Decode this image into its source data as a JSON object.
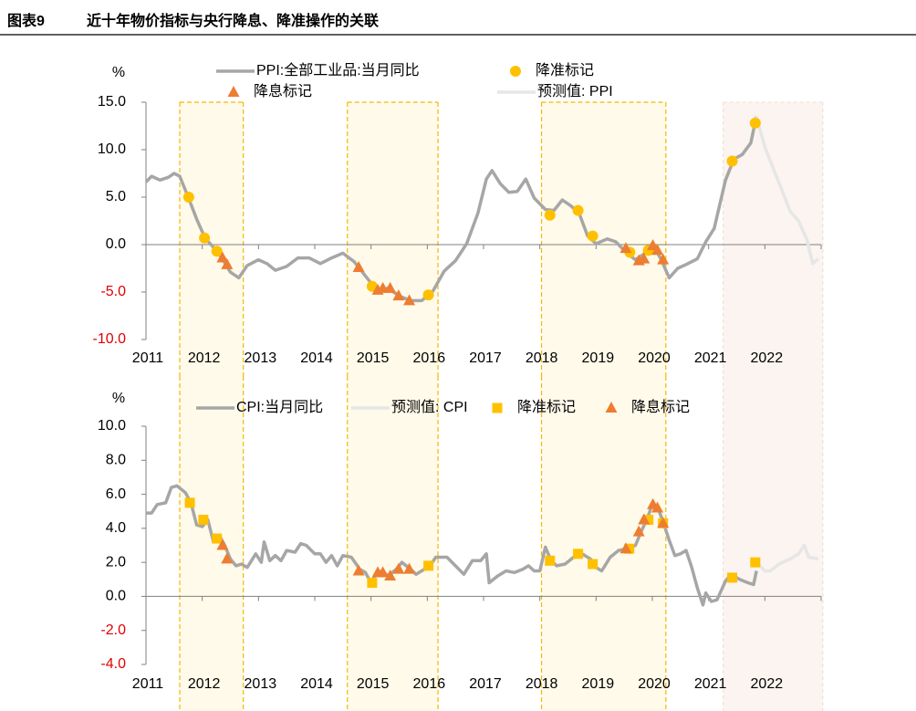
{
  "header": {
    "figure_no": "图表9",
    "title": "近十年物价指标与央行降息、降准操作的关联"
  },
  "chart_data": [
    {
      "type": "line",
      "y_label": "%",
      "xlim": [
        2011,
        2023
      ],
      "xticks": [
        2011,
        2012,
        2013,
        2014,
        2015,
        2016,
        2017,
        2018,
        2019,
        2020,
        2021,
        2022
      ],
      "ylim": [
        -10,
        15
      ],
      "yticks": [
        {
          "value": 15,
          "label": "15.0"
        },
        {
          "value": 10,
          "label": "10.0"
        },
        {
          "value": 5,
          "label": "5.0"
        },
        {
          "value": 0,
          "label": "0.0"
        },
        {
          "value": -5,
          "label": "-5.0"
        },
        {
          "value": -10,
          "label": "-10.0"
        }
      ],
      "highlight_periods": [
        [
          2011.6,
          2012.73
        ],
        [
          2014.58,
          2016.19
        ],
        [
          2018.03,
          2020.24
        ]
      ],
      "forecast_period": [
        2021.26,
        2023.03
      ],
      "series": [
        {
          "name": "PPI:全部工业品:当月同比",
          "marker": "line",
          "color": "#a6a6a6",
          "x": [
            2011.0,
            2011.1,
            2011.25,
            2011.4,
            2011.5,
            2011.6,
            2011.75,
            2011.9,
            2012.05,
            2012.2,
            2012.35,
            2012.5,
            2012.65,
            2012.8,
            2013.0,
            2013.15,
            2013.3,
            2013.5,
            2013.7,
            2013.9,
            2014.1,
            2014.3,
            2014.5,
            2014.7,
            2014.9,
            2015.1,
            2015.3,
            2015.5,
            2015.7,
            2015.9,
            2016.1,
            2016.3,
            2016.5,
            2016.7,
            2016.9,
            2017.05,
            2017.15,
            2017.3,
            2017.45,
            2017.6,
            2017.75,
            2017.9,
            2018.1,
            2018.25,
            2018.4,
            2018.55,
            2018.7,
            2018.85,
            2019.0,
            2019.2,
            2019.35,
            2019.55,
            2019.7,
            2019.85,
            2020.0,
            2020.15,
            2020.3,
            2020.45,
            2020.6,
            2020.8,
            2020.95,
            2021.1,
            2021.3,
            2021.45,
            2021.6,
            2021.75,
            2021.85
          ],
          "values": [
            6.6,
            7.2,
            6.8,
            7.1,
            7.5,
            7.2,
            5.0,
            2.7,
            0.7,
            -0.3,
            -1.4,
            -2.9,
            -3.5,
            -2.2,
            -1.6,
            -2.0,
            -2.7,
            -2.3,
            -1.4,
            -1.4,
            -2.0,
            -1.4,
            -0.9,
            -1.8,
            -3.3,
            -4.8,
            -4.6,
            -5.4,
            -5.9,
            -5.9,
            -4.9,
            -2.8,
            -1.7,
            0.1,
            3.3,
            6.9,
            7.8,
            6.4,
            5.5,
            5.6,
            6.9,
            4.9,
            3.7,
            3.6,
            4.7,
            4.1,
            3.3,
            0.9,
            0.1,
            0.6,
            0.3,
            -0.9,
            -1.6,
            -1.0,
            0.1,
            -1.5,
            -3.5,
            -2.5,
            -2.1,
            -1.5,
            0.3,
            1.7,
            6.8,
            9.0,
            9.5,
            10.7,
            13.5
          ]
        },
        {
          "name": "降准标记",
          "marker": "circle",
          "color": "#ffc000",
          "x": [
            2011.76,
            2012.04,
            2012.26,
            2015.02,
            2016.02,
            2018.18,
            2018.68,
            2018.94,
            2019.6,
            2019.93,
            2021.42,
            2021.83
          ],
          "values": [
            5.0,
            0.7,
            -0.7,
            -4.4,
            -5.3,
            3.1,
            3.6,
            0.9,
            -0.8,
            -0.6,
            8.8,
            12.8
          ]
        },
        {
          "name": "降息标记",
          "marker": "triangle",
          "color": "#ed7d31",
          "x": [
            2012.36,
            2012.44,
            2014.78,
            2015.12,
            2015.21,
            2015.34,
            2015.49,
            2015.68,
            2019.53,
            2019.76,
            2019.85,
            2020.01,
            2020.09,
            2020.19
          ],
          "values": [
            -1.4,
            -2.1,
            -2.4,
            -4.8,
            -4.6,
            -4.6,
            -5.4,
            -5.9,
            -0.4,
            -1.7,
            -1.5,
            -0.1,
            -0.6,
            -1.6
          ]
        },
        {
          "name": "预测值: PPI",
          "marker": "line",
          "color": "#e6e6e6",
          "x": [
            2021.85,
            2022.0,
            2022.15,
            2022.3,
            2022.45,
            2022.6,
            2022.75,
            2022.85,
            2022.95
          ],
          "values": [
            13.5,
            10.3,
            8.0,
            5.8,
            3.5,
            2.5,
            0.5,
            -2.0,
            -1.5
          ]
        }
      ]
    },
    {
      "type": "line",
      "y_label": "%",
      "xlim": [
        2011,
        2023
      ],
      "xticks": [
        2011,
        2012,
        2013,
        2014,
        2015,
        2016,
        2017,
        2018,
        2019,
        2020,
        2021,
        2022
      ],
      "ylim": [
        -4,
        10
      ],
      "yticks": [
        {
          "value": 10,
          "label": "10.0"
        },
        {
          "value": 8,
          "label": "8.0"
        },
        {
          "value": 6,
          "label": "6.0"
        },
        {
          "value": 4,
          "label": "4.0"
        },
        {
          "value": 2,
          "label": "2.0"
        },
        {
          "value": 0,
          "label": "0.0"
        },
        {
          "value": -2,
          "label": "-2.0"
        },
        {
          "value": -4,
          "label": "-4.0"
        }
      ],
      "highlight_periods": [
        [
          2011.6,
          2012.73
        ],
        [
          2014.58,
          2016.19
        ],
        [
          2018.03,
          2020.24
        ]
      ],
      "forecast_period": [
        2021.26,
        2023.03
      ],
      "series": [
        {
          "name": "CPI:当月同比",
          "marker": "line",
          "color": "#a6a6a6",
          "x": [
            2011.0,
            2011.1,
            2011.2,
            2011.35,
            2011.45,
            2011.55,
            2011.7,
            2011.8,
            2011.9,
            2012.0,
            2012.1,
            2012.2,
            2012.3,
            2012.4,
            2012.5,
            2012.6,
            2012.7,
            2012.8,
            2012.95,
            2013.05,
            2013.1,
            2013.2,
            2013.3,
            2013.4,
            2013.5,
            2013.65,
            2013.75,
            2013.85,
            2014.0,
            2014.1,
            2014.2,
            2014.3,
            2014.4,
            2014.5,
            2014.65,
            2014.8,
            2014.9,
            2015.0,
            2015.1,
            2015.2,
            2015.3,
            2015.45,
            2015.55,
            2015.7,
            2015.8,
            2015.95,
            2016.05,
            2016.15,
            2016.35,
            2016.5,
            2016.65,
            2016.8,
            2016.95,
            2017.05,
            2017.1,
            2017.25,
            2017.4,
            2017.55,
            2017.7,
            2017.8,
            2017.9,
            2018.0,
            2018.1,
            2018.2,
            2018.3,
            2018.45,
            2018.6,
            2018.75,
            2018.9,
            2019.0,
            2019.1,
            2019.25,
            2019.4,
            2019.55,
            2019.7,
            2019.8,
            2019.9,
            2020.0,
            2020.1,
            2020.2,
            2020.3,
            2020.4,
            2020.5,
            2020.6,
            2020.7,
            2020.8,
            2020.9,
            2020.95,
            2021.05,
            2021.15,
            2021.3,
            2021.4,
            2021.55,
            2021.7,
            2021.8,
            2021.85
          ],
          "values": [
            4.9,
            4.9,
            5.4,
            5.5,
            6.4,
            6.5,
            6.1,
            5.5,
            4.2,
            4.1,
            4.5,
            3.2,
            3.6,
            3.0,
            2.2,
            1.8,
            1.9,
            1.7,
            2.5,
            2.0,
            3.2,
            2.1,
            2.4,
            2.1,
            2.7,
            2.6,
            3.1,
            3.0,
            2.5,
            2.5,
            2.0,
            2.4,
            1.8,
            2.4,
            2.3,
            1.6,
            1.4,
            0.8,
            1.4,
            1.5,
            1.2,
            1.6,
            2.0,
            1.6,
            1.3,
            1.6,
            1.8,
            2.3,
            2.3,
            1.8,
            1.3,
            2.1,
            2.1,
            2.5,
            0.8,
            1.2,
            1.5,
            1.4,
            1.6,
            1.8,
            1.5,
            1.5,
            2.9,
            2.1,
            1.8,
            1.9,
            2.3,
            2.5,
            2.2,
            1.7,
            1.5,
            2.3,
            2.7,
            2.8,
            3.0,
            3.8,
            4.5,
            5.4,
            5.2,
            4.3,
            3.3,
            2.4,
            2.5,
            2.7,
            1.7,
            0.5,
            -0.5,
            0.2,
            -0.3,
            -0.2,
            0.9,
            1.3,
            1.0,
            0.8,
            0.7,
            1.5
          ]
        },
        {
          "name": "预测值: CPI",
          "marker": "line",
          "color": "#e6e6e6",
          "x": [
            2021.85,
            2022.0,
            2022.1,
            2022.25,
            2022.45,
            2022.6,
            2022.7,
            2022.78,
            2022.95
          ],
          "values": [
            2.0,
            1.5,
            1.5,
            1.9,
            2.2,
            2.5,
            3.0,
            2.3,
            2.2
          ]
        },
        {
          "name": "降准标记",
          "marker": "square",
          "color": "#ffc000",
          "x": [
            2011.78,
            2012.02,
            2012.26,
            2015.02,
            2016.02,
            2018.18,
            2018.68,
            2018.94,
            2019.59,
            2019.93,
            2020.19,
            2021.42,
            2021.83
          ],
          "values": [
            5.5,
            4.5,
            3.4,
            0.8,
            1.8,
            2.1,
            2.5,
            1.9,
            2.8,
            4.5,
            4.3,
            1.1,
            2.0
          ]
        },
        {
          "name": "降息标记",
          "marker": "triangle",
          "color": "#ed7d31",
          "x": [
            2012.36,
            2012.44,
            2014.78,
            2015.12,
            2015.21,
            2015.34,
            2015.49,
            2015.68,
            2019.53,
            2019.76,
            2019.85,
            2020.01,
            2020.09,
            2020.19
          ],
          "values": [
            3.0,
            2.2,
            1.5,
            1.4,
            1.4,
            1.2,
            1.6,
            1.6,
            2.8,
            3.8,
            4.5,
            5.4,
            5.2,
            4.3
          ]
        }
      ]
    }
  ]
}
